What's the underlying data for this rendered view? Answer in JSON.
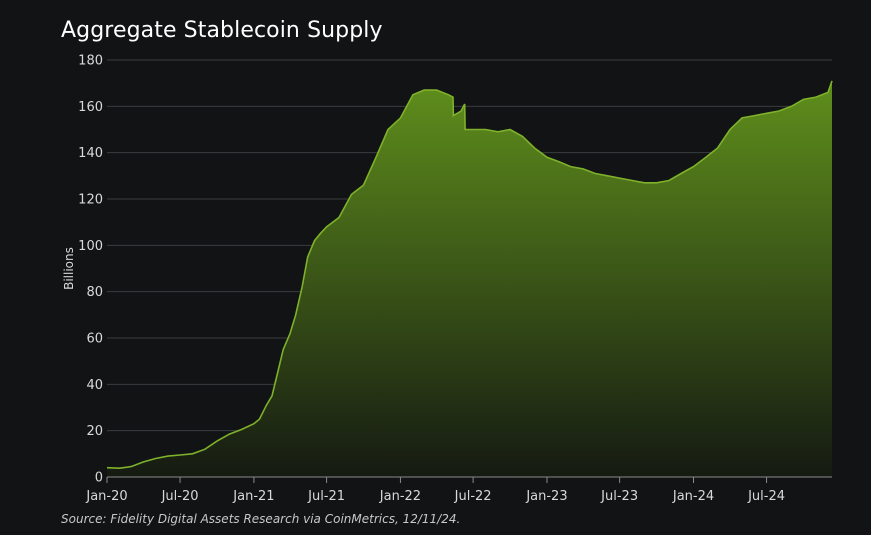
{
  "chart_data": {
    "type": "area",
    "title": "Aggregate Stablecoin Supply",
    "xlabel": "",
    "ylabel": "Billions",
    "source": "Source: Fidelity Digital Assets Research via CoinMetrics, 12/11/24.",
    "ylim": [
      0,
      180
    ],
    "yticks": [
      0,
      20,
      40,
      60,
      80,
      100,
      120,
      140,
      160,
      180
    ],
    "xlim": [
      "2020-01-01",
      "2024-12-11"
    ],
    "xticks": [
      {
        "date": "2020-01-01",
        "label": "Jan-20"
      },
      {
        "date": "2020-07-01",
        "label": "Jul-20"
      },
      {
        "date": "2021-01-01",
        "label": "Jan-21"
      },
      {
        "date": "2021-07-01",
        "label": "Jul-21"
      },
      {
        "date": "2022-01-01",
        "label": "Jan-22"
      },
      {
        "date": "2022-07-01",
        "label": "Jul-22"
      },
      {
        "date": "2023-01-01",
        "label": "Jan-23"
      },
      {
        "date": "2023-07-01",
        "label": "Jul-23"
      },
      {
        "date": "2024-01-01",
        "label": "Jan-24"
      },
      {
        "date": "2024-07-01",
        "label": "Jul-24"
      }
    ],
    "grid": true,
    "colors": {
      "line": "#7fb12a",
      "fill_top": "#5f8f1c",
      "fill_bottom": "#151a12",
      "grid": "#3a3d3f",
      "background": "#111314"
    },
    "series": [
      {
        "x": [
          "2020-01-01",
          "2020-02-01",
          "2020-03-01",
          "2020-04-01",
          "2020-05-01",
          "2020-06-01",
          "2020-07-01",
          "2020-08-01",
          "2020-09-01",
          "2020-10-01",
          "2020-11-01",
          "2020-12-01",
          "2021-01-01",
          "2021-01-15",
          "2021-02-01",
          "2021-02-15",
          "2021-03-01",
          "2021-03-15",
          "2021-04-01",
          "2021-04-15",
          "2021-05-01",
          "2021-05-15",
          "2021-06-01",
          "2021-06-15",
          "2021-07-01",
          "2021-08-01",
          "2021-09-01",
          "2021-10-01",
          "2021-11-01",
          "2021-12-01",
          "2022-01-01",
          "2022-02-01",
          "2022-03-01",
          "2022-04-01",
          "2022-05-01",
          "2022-05-12",
          "2022-05-13",
          "2022-06-01",
          "2022-06-10",
          "2022-06-11",
          "2022-07-01",
          "2022-08-01",
          "2022-09-01",
          "2022-10-01",
          "2022-11-01",
          "2022-12-01",
          "2023-01-01",
          "2023-02-01",
          "2023-03-01",
          "2023-04-01",
          "2023-05-01",
          "2023-06-01",
          "2023-07-01",
          "2023-08-01",
          "2023-09-01",
          "2023-10-01",
          "2023-11-01",
          "2023-12-01",
          "2024-01-01",
          "2024-02-01",
          "2024-03-01",
          "2024-04-01",
          "2024-05-01",
          "2024-06-01",
          "2024-07-01",
          "2024-08-01",
          "2024-09-01",
          "2024-10-01",
          "2024-11-01",
          "2024-12-01",
          "2024-12-11"
        ],
        "values": [
          4,
          3.8,
          4.5,
          6.5,
          8,
          9,
          9.5,
          10,
          12,
          15.5,
          18.5,
          20.5,
          23,
          25,
          31,
          35,
          45,
          55,
          62,
          70,
          82,
          95,
          102,
          105,
          108,
          112,
          122,
          126,
          138,
          150,
          155,
          165,
          167,
          167,
          165,
          164,
          156,
          158,
          161,
          150,
          150,
          150,
          149,
          150,
          147,
          142,
          138,
          136,
          134,
          133,
          131,
          130,
          129,
          128,
          127,
          127,
          128,
          131,
          134,
          138,
          142,
          150,
          155,
          156,
          157,
          158,
          160,
          163,
          164,
          166,
          171
        ]
      }
    ]
  }
}
